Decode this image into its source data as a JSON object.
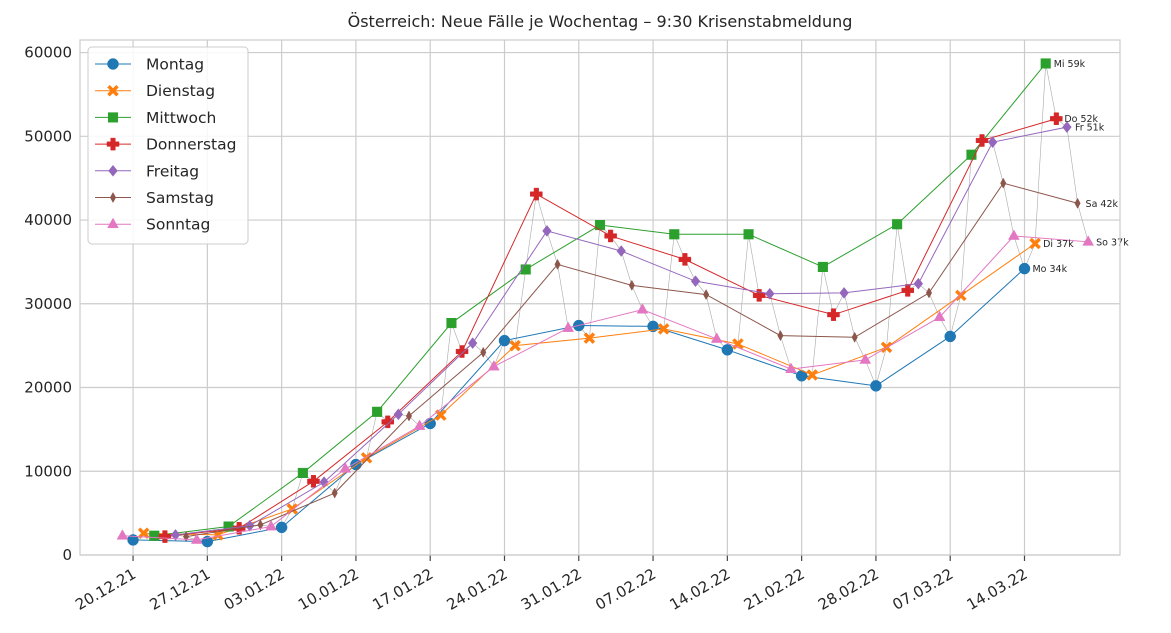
{
  "chart_data": {
    "type": "line",
    "title": "Österreich: Neue Fälle je Wochentag – 9:30 Krisenstabmeldung",
    "xlabel": "",
    "ylabel": "",
    "x_axis": "date",
    "xlim": [
      "2021-12-15",
      "2022-03-23"
    ],
    "ylim": [
      0,
      61500
    ],
    "x_ticks": [
      {
        "date": "2021-12-20",
        "label": "20.12.21"
      },
      {
        "date": "2021-12-27",
        "label": "27.12.21"
      },
      {
        "date": "2022-01-03",
        "label": "03.01.22"
      },
      {
        "date": "2022-01-10",
        "label": "10.01.22"
      },
      {
        "date": "2022-01-17",
        "label": "17.01.22"
      },
      {
        "date": "2022-01-24",
        "label": "24.01.22"
      },
      {
        "date": "2022-01-31",
        "label": "31.01.22"
      },
      {
        "date": "2022-02-07",
        "label": "07.02.22"
      },
      {
        "date": "2022-02-14",
        "label": "14.02.22"
      },
      {
        "date": "2022-02-21",
        "label": "21.02.22"
      },
      {
        "date": "2022-02-28",
        "label": "28.02.22"
      },
      {
        "date": "2022-03-07",
        "label": "07.03.22"
      },
      {
        "date": "2022-03-14",
        "label": "14.03.22"
      }
    ],
    "y_ticks": [
      0,
      10000,
      20000,
      30000,
      40000,
      50000,
      60000
    ],
    "grid": true,
    "legend_position": "top-left",
    "connector_line_color": "#a9a9a9",
    "series": [
      {
        "name": "Montag",
        "color": "#1f77b4",
        "marker": "circle",
        "x": [
          "2021-12-20",
          "2021-12-27",
          "2022-01-03",
          "2022-01-10",
          "2022-01-17",
          "2022-01-24",
          "2022-01-31",
          "2022-02-07",
          "2022-02-14",
          "2022-02-21",
          "2022-02-28",
          "2022-03-07",
          "2022-03-14"
        ],
        "y": [
          1800,
          1600,
          3300,
          10800,
          15700,
          25600,
          27400,
          27300,
          24500,
          21400,
          20200,
          26100,
          34200
        ],
        "end_label": "Mo 34k"
      },
      {
        "name": "Dienstag",
        "color": "#ff7f0e",
        "marker": "x",
        "x": [
          "2021-12-21",
          "2021-12-28",
          "2022-01-04",
          "2022-01-11",
          "2022-01-18",
          "2022-01-25",
          "2022-02-01",
          "2022-02-08",
          "2022-02-15",
          "2022-02-22",
          "2022-03-01",
          "2022-03-08",
          "2022-03-15"
        ],
        "y": [
          2600,
          2400,
          5500,
          11600,
          16700,
          25000,
          25900,
          27000,
          25200,
          21500,
          24800,
          31000,
          37200
        ],
        "end_label": "Di 37k"
      },
      {
        "name": "Mittwoch",
        "color": "#2ca02c",
        "marker": "square",
        "x": [
          "2021-12-22",
          "2021-12-29",
          "2022-01-05",
          "2022-01-12",
          "2022-01-19",
          "2022-01-26",
          "2022-02-02",
          "2022-02-09",
          "2022-02-16",
          "2022-02-23",
          "2022-03-02",
          "2022-03-09",
          "2022-03-16"
        ],
        "y": [
          2300,
          3400,
          9800,
          17100,
          27700,
          34100,
          39400,
          38300,
          38300,
          34400,
          39500,
          47800,
          58700
        ],
        "end_label": "Mi 59k"
      },
      {
        "name": "Donnerstag",
        "color": "#d62728",
        "marker": "plus",
        "x": [
          "2021-12-23",
          "2021-12-30",
          "2022-01-06",
          "2022-01-13",
          "2022-01-20",
          "2022-01-27",
          "2022-02-03",
          "2022-02-10",
          "2022-02-17",
          "2022-02-24",
          "2022-03-03",
          "2022-03-10",
          "2022-03-17"
        ],
        "y": [
          2200,
          3200,
          8800,
          15900,
          24300,
          43100,
          38100,
          35300,
          31000,
          28700,
          31600,
          49500,
          52100
        ],
        "end_label": "Do 52k"
      },
      {
        "name": "Freitag",
        "color": "#9467bd",
        "marker": "diamond",
        "x": [
          "2021-12-24",
          "2021-12-31",
          "2022-01-07",
          "2022-01-14",
          "2022-01-21",
          "2022-01-28",
          "2022-02-04",
          "2022-02-11",
          "2022-02-18",
          "2022-02-25",
          "2022-03-04",
          "2022-03-11",
          "2022-03-18"
        ],
        "y": [
          2400,
          3500,
          8700,
          16800,
          25300,
          38700,
          36300,
          32700,
          31200,
          31300,
          32400,
          49300,
          51100
        ],
        "end_label": "Fr 51k"
      },
      {
        "name": "Samstag",
        "color": "#8c564b",
        "marker": "thin-diamond",
        "x": [
          "2021-12-25",
          "2022-01-01",
          "2022-01-08",
          "2022-01-15",
          "2022-01-22",
          "2022-01-29",
          "2022-02-05",
          "2022-02-12",
          "2022-02-19",
          "2022-02-26",
          "2022-03-05",
          "2022-03-12",
          "2022-03-19"
        ],
        "y": [
          2200,
          3600,
          7400,
          16600,
          24200,
          34700,
          32200,
          31100,
          26200,
          26000,
          31300,
          44400,
          42000
        ],
        "end_label": "Sa 42k"
      },
      {
        "name": "Sonntag",
        "color": "#e377c2",
        "marker": "triangle",
        "x": [
          "2021-12-19",
          "2021-12-26",
          "2022-01-02",
          "2022-01-09",
          "2022-01-16",
          "2022-01-23",
          "2022-01-30",
          "2022-02-06",
          "2022-02-13",
          "2022-02-20",
          "2022-02-27",
          "2022-03-06",
          "2022-03-13",
          "2022-03-20"
        ],
        "y": [
          2300,
          1800,
          3400,
          10300,
          15400,
          22500,
          27100,
          29300,
          25800,
          22200,
          23300,
          28400,
          38100,
          37400
        ],
        "end_label": "So 37k"
      }
    ]
  }
}
